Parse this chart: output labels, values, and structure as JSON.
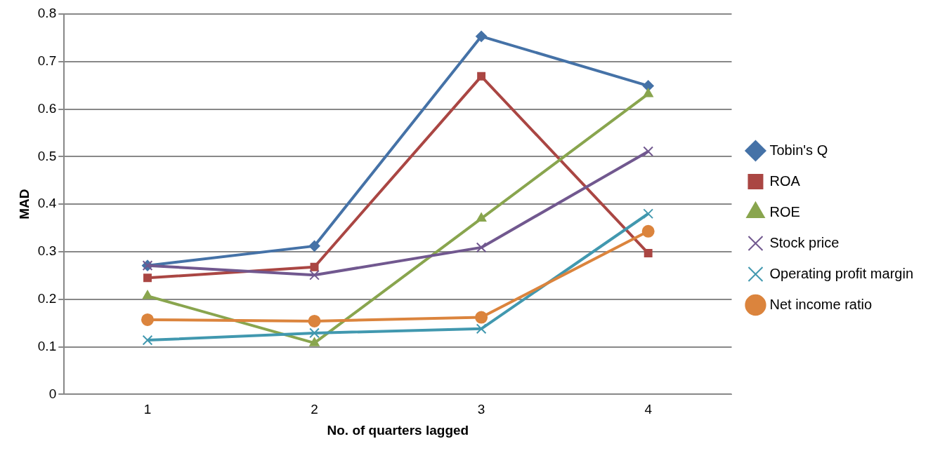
{
  "chart_data": {
    "type": "line",
    "xlabel": "No. of quarters lagged",
    "ylabel": "MAD",
    "categories": [
      "1",
      "2",
      "3",
      "4"
    ],
    "series": [
      {
        "name": "Tobin's Q",
        "color": "#4572a7",
        "marker": "diamond",
        "values": [
          0.271,
          0.312,
          0.753,
          0.649
        ]
      },
      {
        "name": "ROA",
        "color": "#aa4643",
        "marker": "square",
        "values": [
          0.245,
          0.268,
          0.669,
          0.297
        ]
      },
      {
        "name": "ROE",
        "color": "#89a54e",
        "marker": "triangle",
        "values": [
          0.207,
          0.108,
          0.37,
          0.632
        ]
      },
      {
        "name": "Stock price",
        "color": "#71588f",
        "marker": "cross",
        "values": [
          0.271,
          0.251,
          0.309,
          0.511
        ]
      },
      {
        "name": "Operating profit margin",
        "color": "#4198af",
        "marker": "cross",
        "values": [
          0.114,
          0.129,
          0.138,
          0.38
        ]
      },
      {
        "name": "Net income ratio",
        "color": "#db843d",
        "marker": "circle",
        "values": [
          0.157,
          0.154,
          0.162,
          0.343
        ]
      }
    ],
    "ylim": [
      0,
      0.8
    ],
    "yticks": [
      0,
      0.1,
      0.2,
      0.3,
      0.4,
      0.5,
      0.6,
      0.7,
      0.8
    ],
    "grid": "y",
    "legend": "right",
    "line_style": "solid"
  }
}
